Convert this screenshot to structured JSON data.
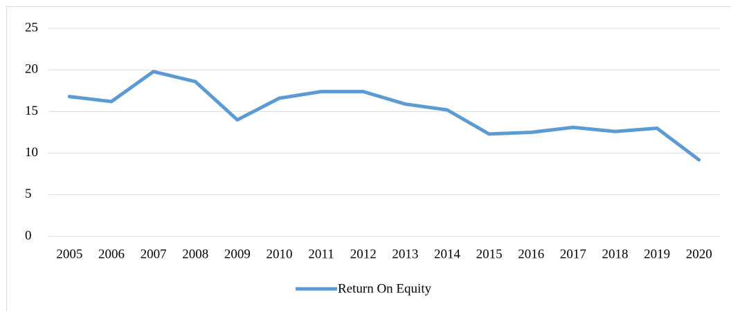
{
  "chart_data": {
    "type": "line",
    "categories": [
      "2005",
      "2006",
      "2007",
      "2008",
      "2009",
      "2010",
      "2011",
      "2012",
      "2013",
      "2014",
      "2015",
      "2016",
      "2017",
      "2018",
      "2019",
      "2020"
    ],
    "series": [
      {
        "name": "Return On Equity",
        "color": "#5b9bd5",
        "values": [
          16.8,
          16.2,
          19.8,
          18.6,
          14.0,
          16.6,
          17.4,
          17.4,
          15.9,
          15.2,
          12.3,
          12.5,
          13.1,
          12.6,
          13.0,
          9.2
        ]
      }
    ],
    "ylim": [
      0,
      25
    ],
    "yticks": [
      0,
      5,
      10,
      15,
      20,
      25
    ],
    "grid": true,
    "legend": "bottom"
  }
}
